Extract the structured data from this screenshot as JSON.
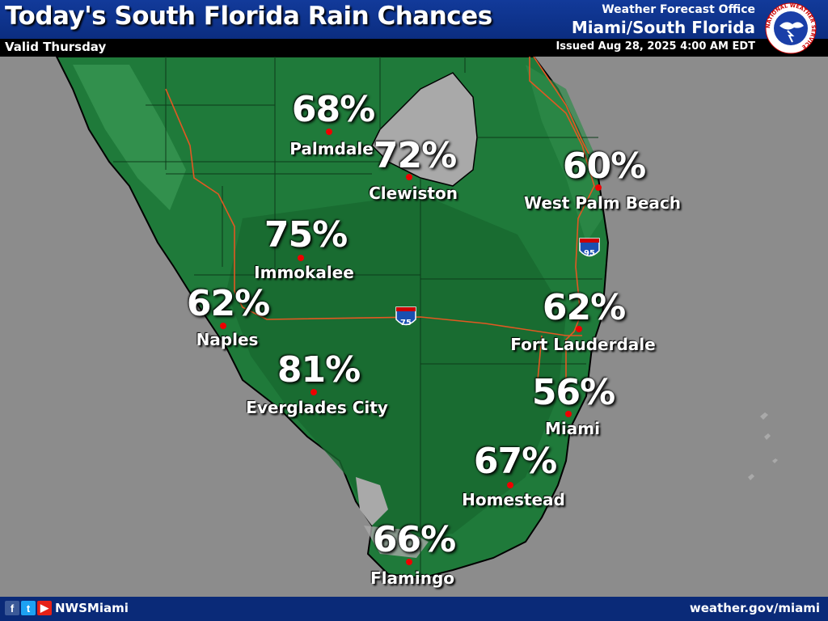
{
  "header": {
    "title": "Today's South Florida Rain Chances",
    "valid": "Valid Thursday",
    "wfo_label": "Weather Forecast Office",
    "wfo_name": "Miami/South Florida",
    "issued": "Issued Aug 28, 2025 4:00 AM EDT"
  },
  "logo": {
    "text": "NATIONAL WEATHER SERVICE",
    "icon": "nws-logo"
  },
  "locations": [
    {
      "name": "Palmdale",
      "chance": "68%"
    },
    {
      "name": "Clewiston",
      "chance": "72%"
    },
    {
      "name": "West Palm Beach",
      "chance": "60%"
    },
    {
      "name": "Immokalee",
      "chance": "75%"
    },
    {
      "name": "Naples",
      "chance": "62%"
    },
    {
      "name": "Fort Lauderdale",
      "chance": "62%"
    },
    {
      "name": "Everglades City",
      "chance": "81%"
    },
    {
      "name": "Miami",
      "chance": "56%"
    },
    {
      "name": "Homestead",
      "chance": "67%"
    },
    {
      "name": "Flamingo",
      "chance": "66%"
    }
  ],
  "highways": [
    {
      "label": "75",
      "icon": "interstate-shield"
    },
    {
      "label": "95",
      "icon": "interstate-shield"
    }
  ],
  "footer": {
    "social_icons": [
      "facebook-icon",
      "twitter-icon",
      "youtube-icon"
    ],
    "handle": "NWSMiami",
    "website": "weather.gov/miami"
  },
  "colors": {
    "land_green": "#1f7a3a",
    "water_gray": "#8c8c8c",
    "lake_gray": "#a9a9a9",
    "header_blue": "#0b2d80",
    "road_orange": "#e25822",
    "city_dot": "#e00000"
  }
}
